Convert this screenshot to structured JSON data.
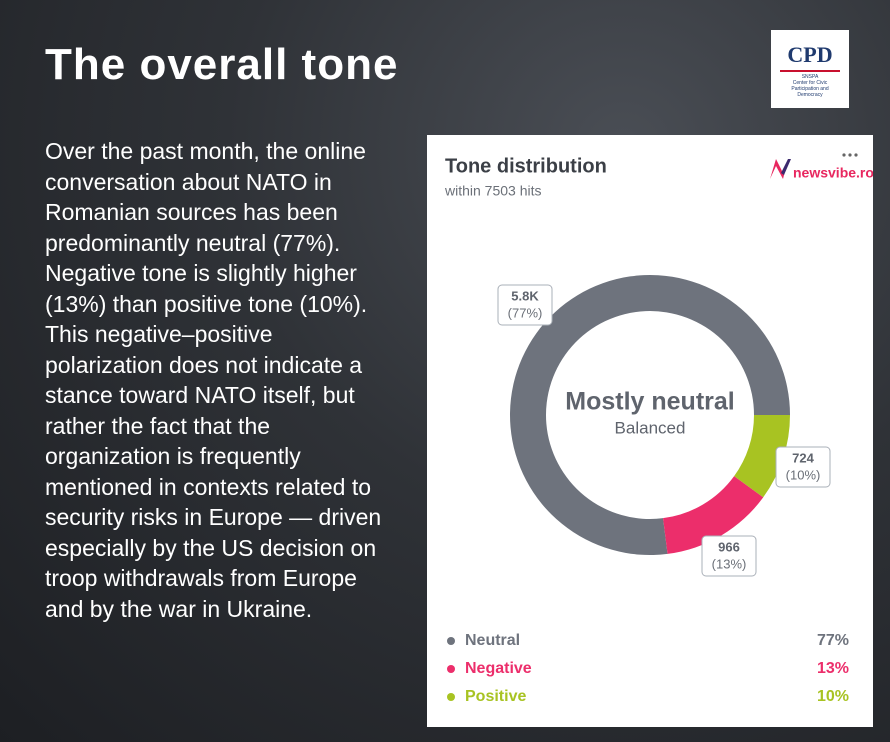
{
  "title": "The overall tone",
  "body": [
    "Over the past month, the online conversation about NATO in Romanian sources has been predominantly neutral (77%). Negative tone is slightly higher (13%) than positive tone (10%).",
    "This negative–positive polarization does not indicate a stance toward NATO itself, but rather the fact that the organization is frequently mentioned in contexts related to security risks in Europe — driven especially by the US decision on troop withdrawals from Europe and by the war in Ukraine."
  ],
  "logo": {
    "name": "CPD",
    "org": "SNSPA",
    "subtitle": "Center for Civic Participation and Democracy"
  },
  "chart_data": {
    "type": "pie",
    "donut": true,
    "title": "Tone distribution",
    "subtitle": "within 7503 hits",
    "brand": "newsvibe.ro",
    "center_label": "Mostly neutral",
    "center_sublabel": "Balanced",
    "categories": [
      "Neutral",
      "Negative",
      "Positive"
    ],
    "values": [
      77,
      13,
      10
    ],
    "value_labels": [
      "77%",
      "13%",
      "10%"
    ],
    "callout_labels": [
      "(77%)",
      "(13%)",
      "(10%)"
    ],
    "counts": [
      5800,
      966,
      724
    ],
    "count_labels": [
      "5.8K",
      "966",
      "724"
    ],
    "colors": [
      "#6e737d",
      "#ec2e6b",
      "#a8c322"
    ]
  }
}
